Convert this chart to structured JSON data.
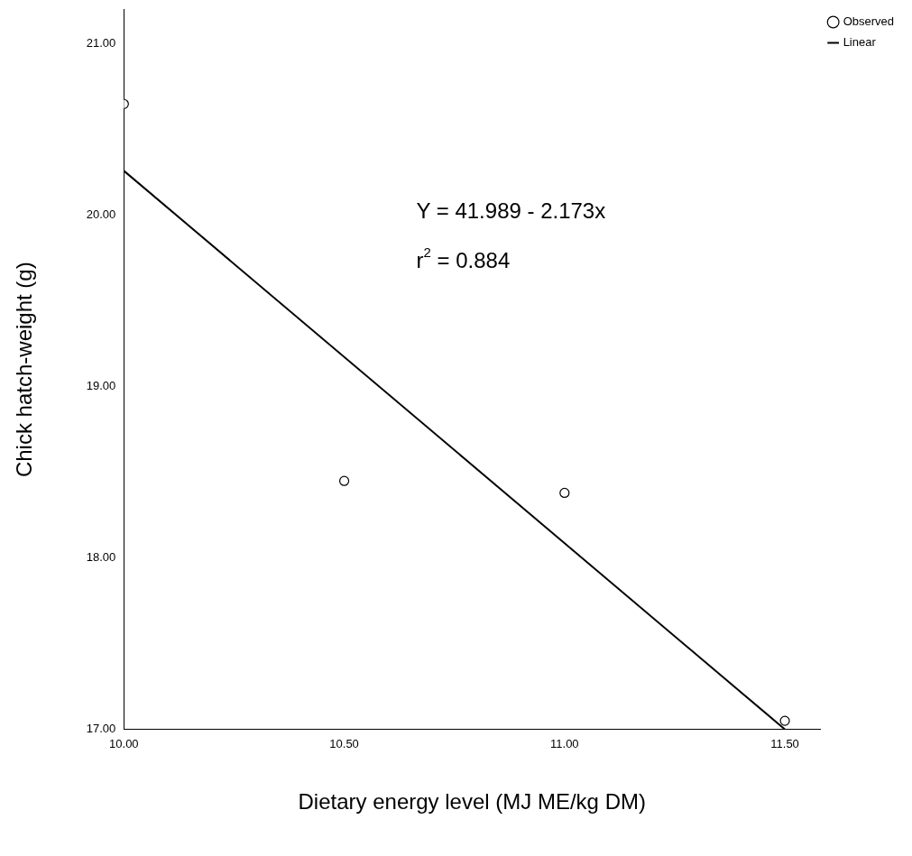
{
  "chart_data": {
    "type": "scatter",
    "xlabel": "Dietary energy level (MJ ME/kg DM)",
    "ylabel": "Chick hatch-weight (g)",
    "xlim": [
      10.0,
      11.58
    ],
    "ylim": [
      17.0,
      21.2
    ],
    "xticks": [
      {
        "value": 10,
        "label": "10.00"
      },
      {
        "value": 10.5,
        "label": "10.50"
      },
      {
        "value": 11,
        "label": "11.00"
      },
      {
        "value": 11.5,
        "label": "11.50"
      }
    ],
    "yticks": [
      {
        "value": 17,
        "label": "17.00"
      },
      {
        "value": 18,
        "label": "18.00"
      },
      {
        "value": 19,
        "label": "19.00"
      },
      {
        "value": 20,
        "label": "20.00"
      },
      {
        "value": 21,
        "label": "21.00"
      }
    ],
    "grid": false,
    "legend": "top right",
    "series": [
      {
        "name": "Observed",
        "marker": "circle",
        "color": "#000000",
        "x": [
          10.0,
          10.5,
          11.0,
          11.5
        ],
        "values": [
          20.65,
          18.45,
          18.38,
          17.05
        ]
      },
      {
        "name": "Linear",
        "type": "line",
        "color": "#000000",
        "line_style": "solid",
        "x": [
          10.0,
          11.5
        ],
        "values": [
          20.26,
          17.0
        ]
      }
    ],
    "annotations": [
      "Y = 41.989 - 2.173x",
      "r$^{2}$ = 0.884"
    ]
  }
}
